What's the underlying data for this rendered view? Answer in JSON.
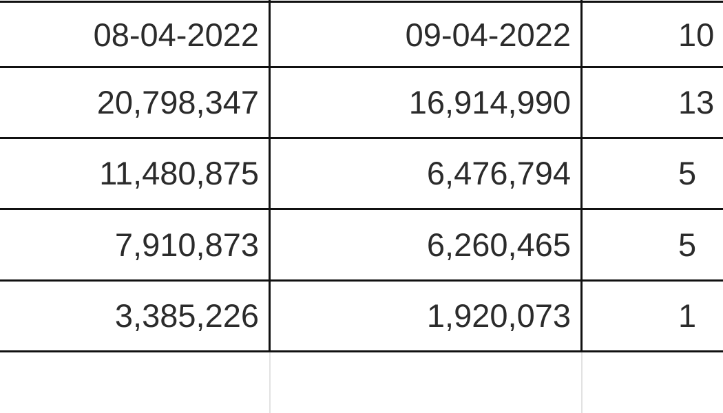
{
  "sheet": {
    "rows": [
      [
        "08-04-2022",
        "09-04-2022",
        "10"
      ],
      [
        "20,798,347",
        "16,914,990",
        "13"
      ],
      [
        "11,480,875",
        "6,476,794",
        "5"
      ],
      [
        "7,910,873",
        "6,260,465",
        "5"
      ],
      [
        "3,385,226",
        "1,920,073",
        "1"
      ]
    ]
  }
}
